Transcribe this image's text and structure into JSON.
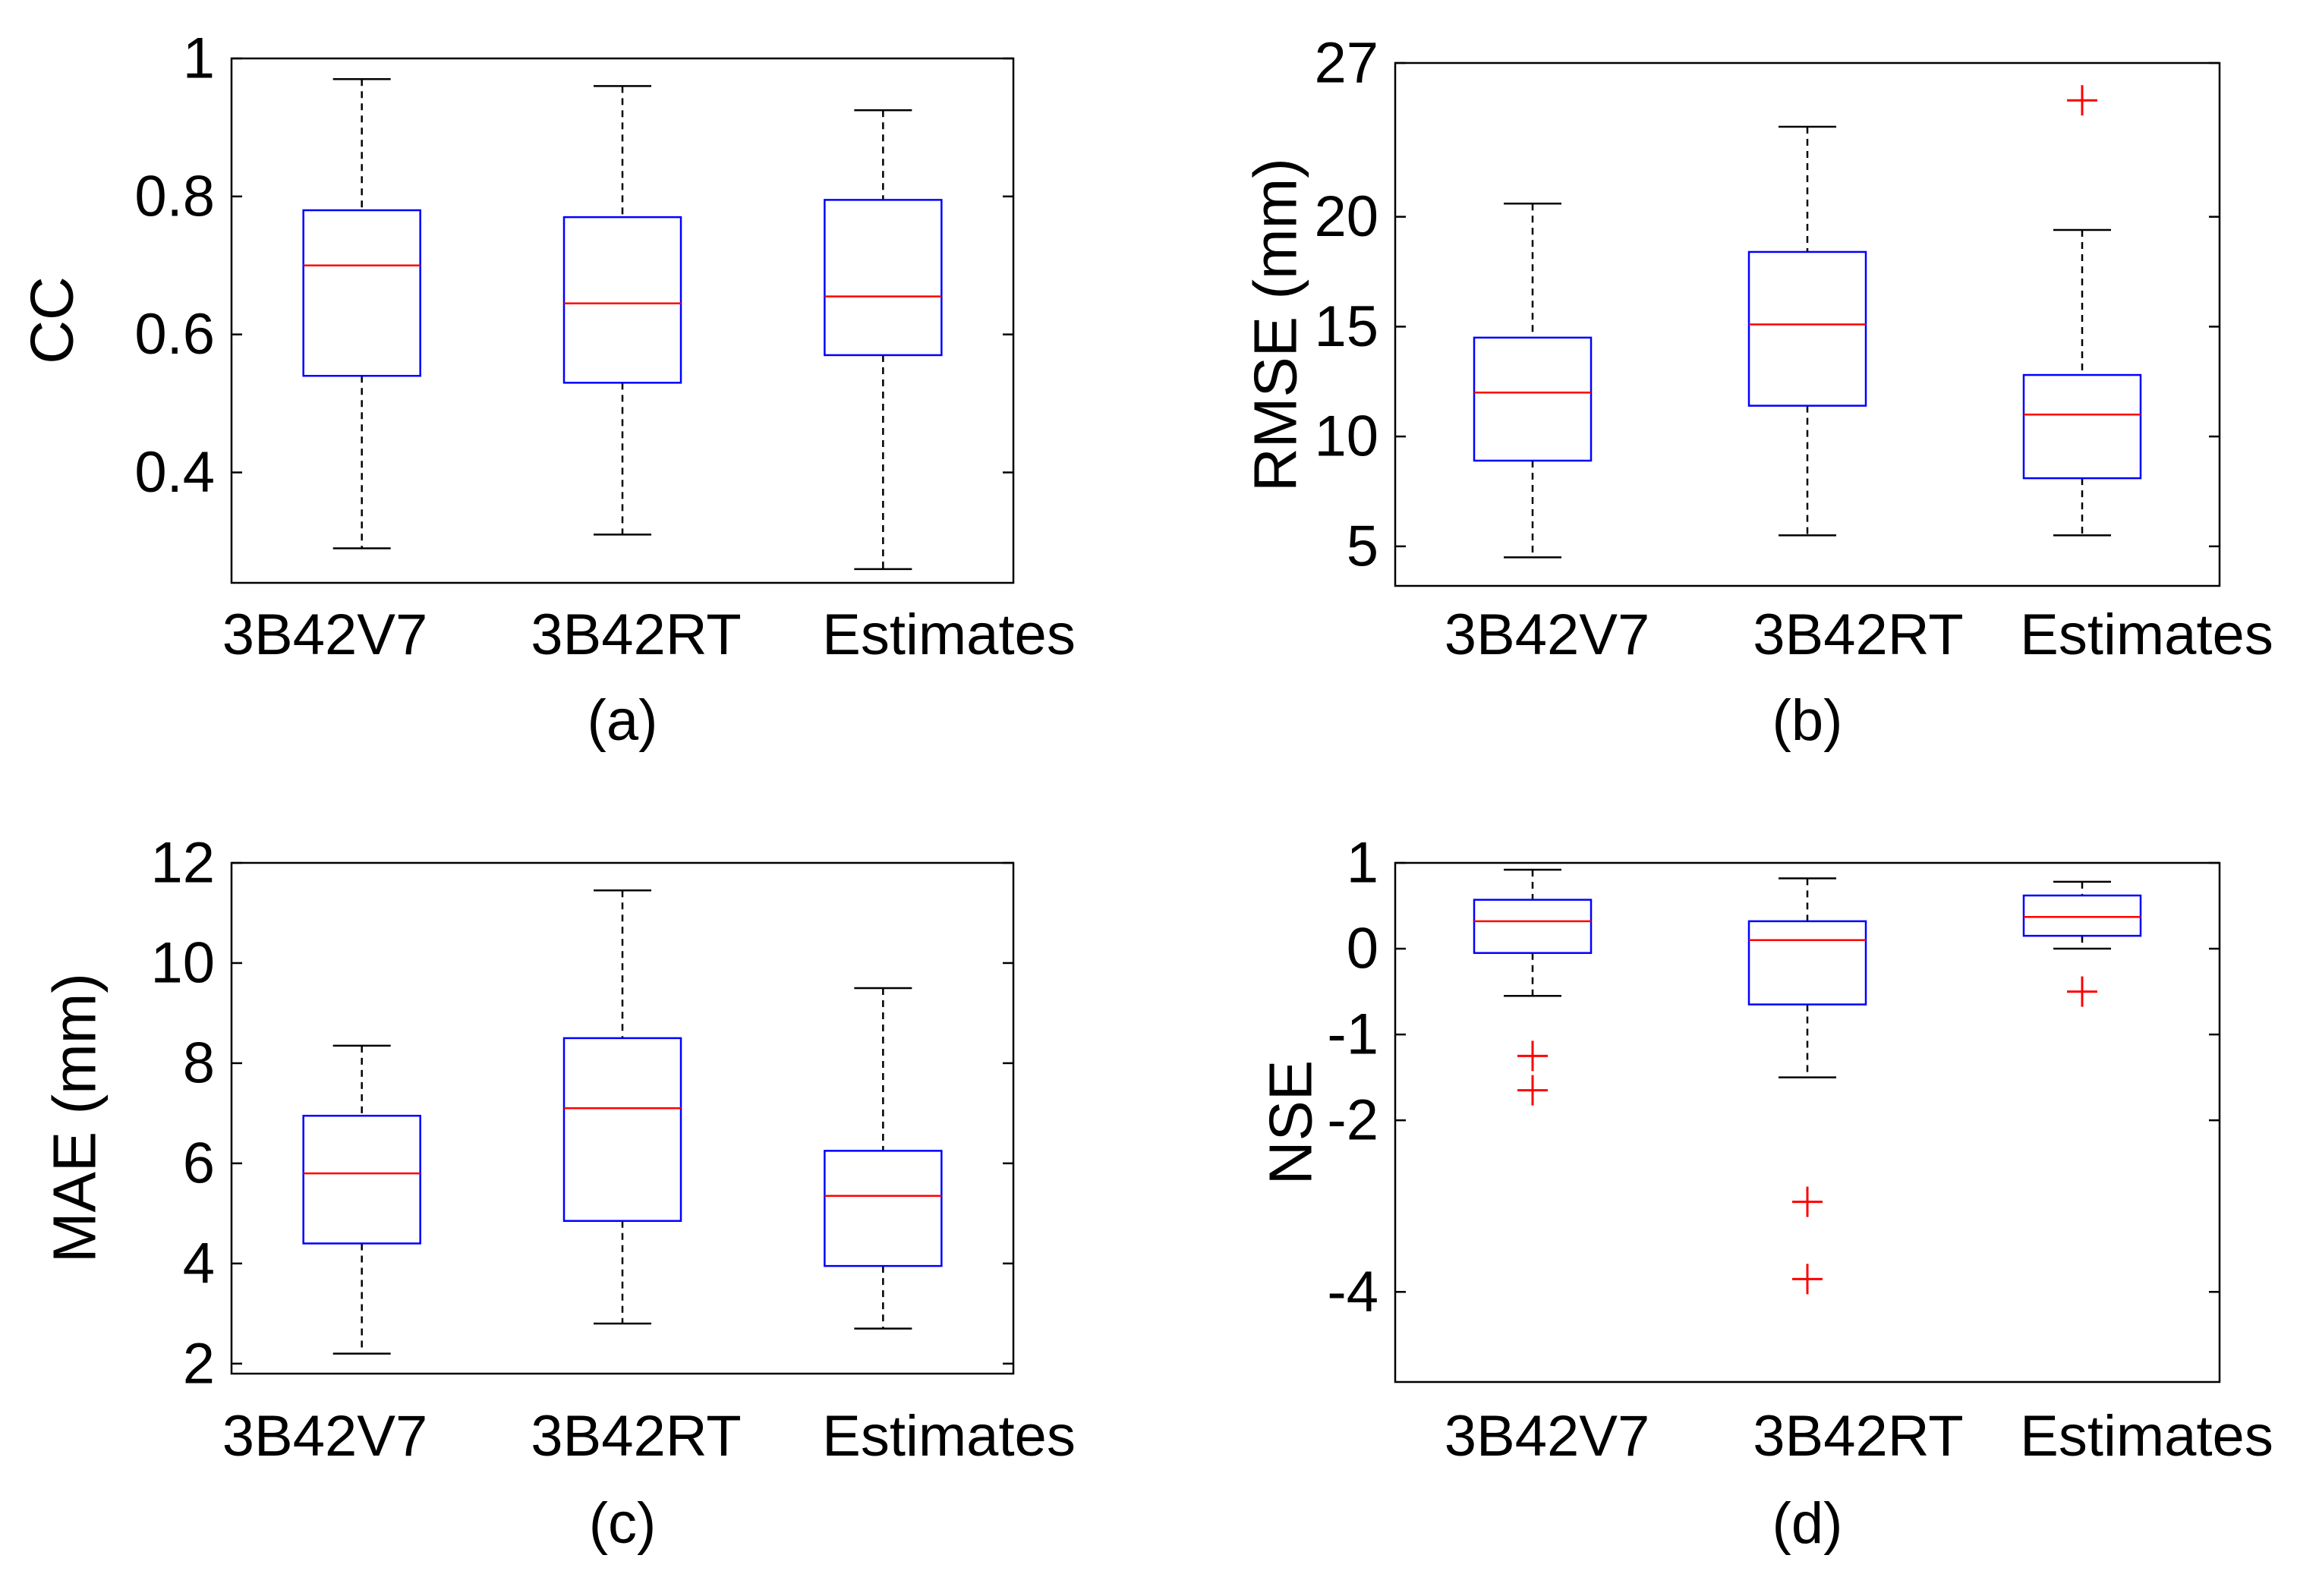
{
  "chart_data": [
    {
      "type": "box",
      "panel_label": "(a)",
      "title": "",
      "xlabel": "",
      "ylabel": "CC",
      "ylim": [
        0.24,
        1.0
      ],
      "yticks": [
        0.4,
        0.6,
        0.8,
        1
      ],
      "ytick_labels": [
        "0.4",
        "0.6",
        "0.8",
        "1"
      ],
      "categories": [
        "3B42V7",
        "3B42RT",
        "Estimates"
      ],
      "boxes": [
        {
          "category": "3B42V7",
          "min": 0.29,
          "q1": 0.54,
          "median": 0.7,
          "q3": 0.78,
          "max": 0.97,
          "outliers": []
        },
        {
          "category": "3B42RT",
          "min": 0.31,
          "q1": 0.53,
          "median": 0.645,
          "q3": 0.77,
          "max": 0.96,
          "outliers": []
        },
        {
          "category": "Estimates",
          "min": 0.26,
          "q1": 0.57,
          "median": 0.655,
          "q3": 0.795,
          "max": 0.925,
          "outliers": []
        }
      ]
    },
    {
      "type": "box",
      "panel_label": "(b)",
      "title": "",
      "xlabel": "",
      "ylabel": "RMSE (mm)",
      "ylim": [
        3.2,
        27.0
      ],
      "yticks": [
        5,
        10,
        15,
        20,
        27
      ],
      "ytick_labels": [
        "5",
        "10",
        "15",
        "20",
        "27"
      ],
      "categories": [
        "3B42V7",
        "3B42RT",
        "Estimates"
      ],
      "boxes": [
        {
          "category": "3B42V7",
          "min": 4.5,
          "q1": 8.9,
          "median": 12.0,
          "q3": 14.5,
          "max": 20.6,
          "outliers": []
        },
        {
          "category": "3B42RT",
          "min": 5.5,
          "q1": 11.4,
          "median": 15.1,
          "q3": 18.4,
          "max": 24.1,
          "outliers": []
        },
        {
          "category": "Estimates",
          "min": 5.5,
          "q1": 8.1,
          "median": 11.0,
          "q3": 12.8,
          "max": 19.4,
          "outliers": [
            25.3
          ]
        }
      ]
    },
    {
      "type": "box",
      "panel_label": "(c)",
      "title": "",
      "xlabel": "",
      "ylabel": "MAE (mm)",
      "ylim": [
        1.8,
        12.0
      ],
      "yticks": [
        2,
        4,
        6,
        8,
        10,
        12
      ],
      "ytick_labels": [
        "2",
        "4",
        "6",
        "8",
        "10",
        "12"
      ],
      "categories": [
        "3B42V7",
        "3B42RT",
        "Estimates"
      ],
      "boxes": [
        {
          "category": "3B42V7",
          "min": 2.2,
          "q1": 4.4,
          "median": 5.8,
          "q3": 6.95,
          "max": 8.35,
          "outliers": []
        },
        {
          "category": "3B42RT",
          "min": 2.8,
          "q1": 4.85,
          "median": 7.1,
          "q3": 8.5,
          "max": 11.45,
          "outliers": []
        },
        {
          "category": "Estimates",
          "min": 2.7,
          "q1": 3.95,
          "median": 5.35,
          "q3": 6.25,
          "max": 9.5,
          "outliers": []
        }
      ]
    },
    {
      "type": "box",
      "panel_label": "(d)",
      "title": "",
      "xlabel": "",
      "ylabel": "NSE",
      "ylim": [
        -5.05,
        1.0
      ],
      "yticks": [
        -4,
        -2,
        -1,
        0,
        1
      ],
      "ytick_labels": [
        "-4",
        "-2",
        "-1",
        "0",
        "1"
      ],
      "categories": [
        "3B42V7",
        "3B42RT",
        "Estimates"
      ],
      "boxes": [
        {
          "category": "3B42V7",
          "min": -0.55,
          "q1": -0.05,
          "median": 0.32,
          "q3": 0.57,
          "max": 0.92,
          "outliers": [
            -1.25,
            -1.65
          ]
        },
        {
          "category": "3B42RT",
          "min": -1.5,
          "q1": -0.65,
          "median": 0.1,
          "q3": 0.32,
          "max": 0.82,
          "outliers": [
            -2.95,
            -3.85
          ]
        },
        {
          "category": "Estimates",
          "min": 0.0,
          "q1": 0.15,
          "median": 0.37,
          "q3": 0.62,
          "max": 0.78,
          "outliers": [
            -0.5
          ]
        }
      ]
    }
  ]
}
